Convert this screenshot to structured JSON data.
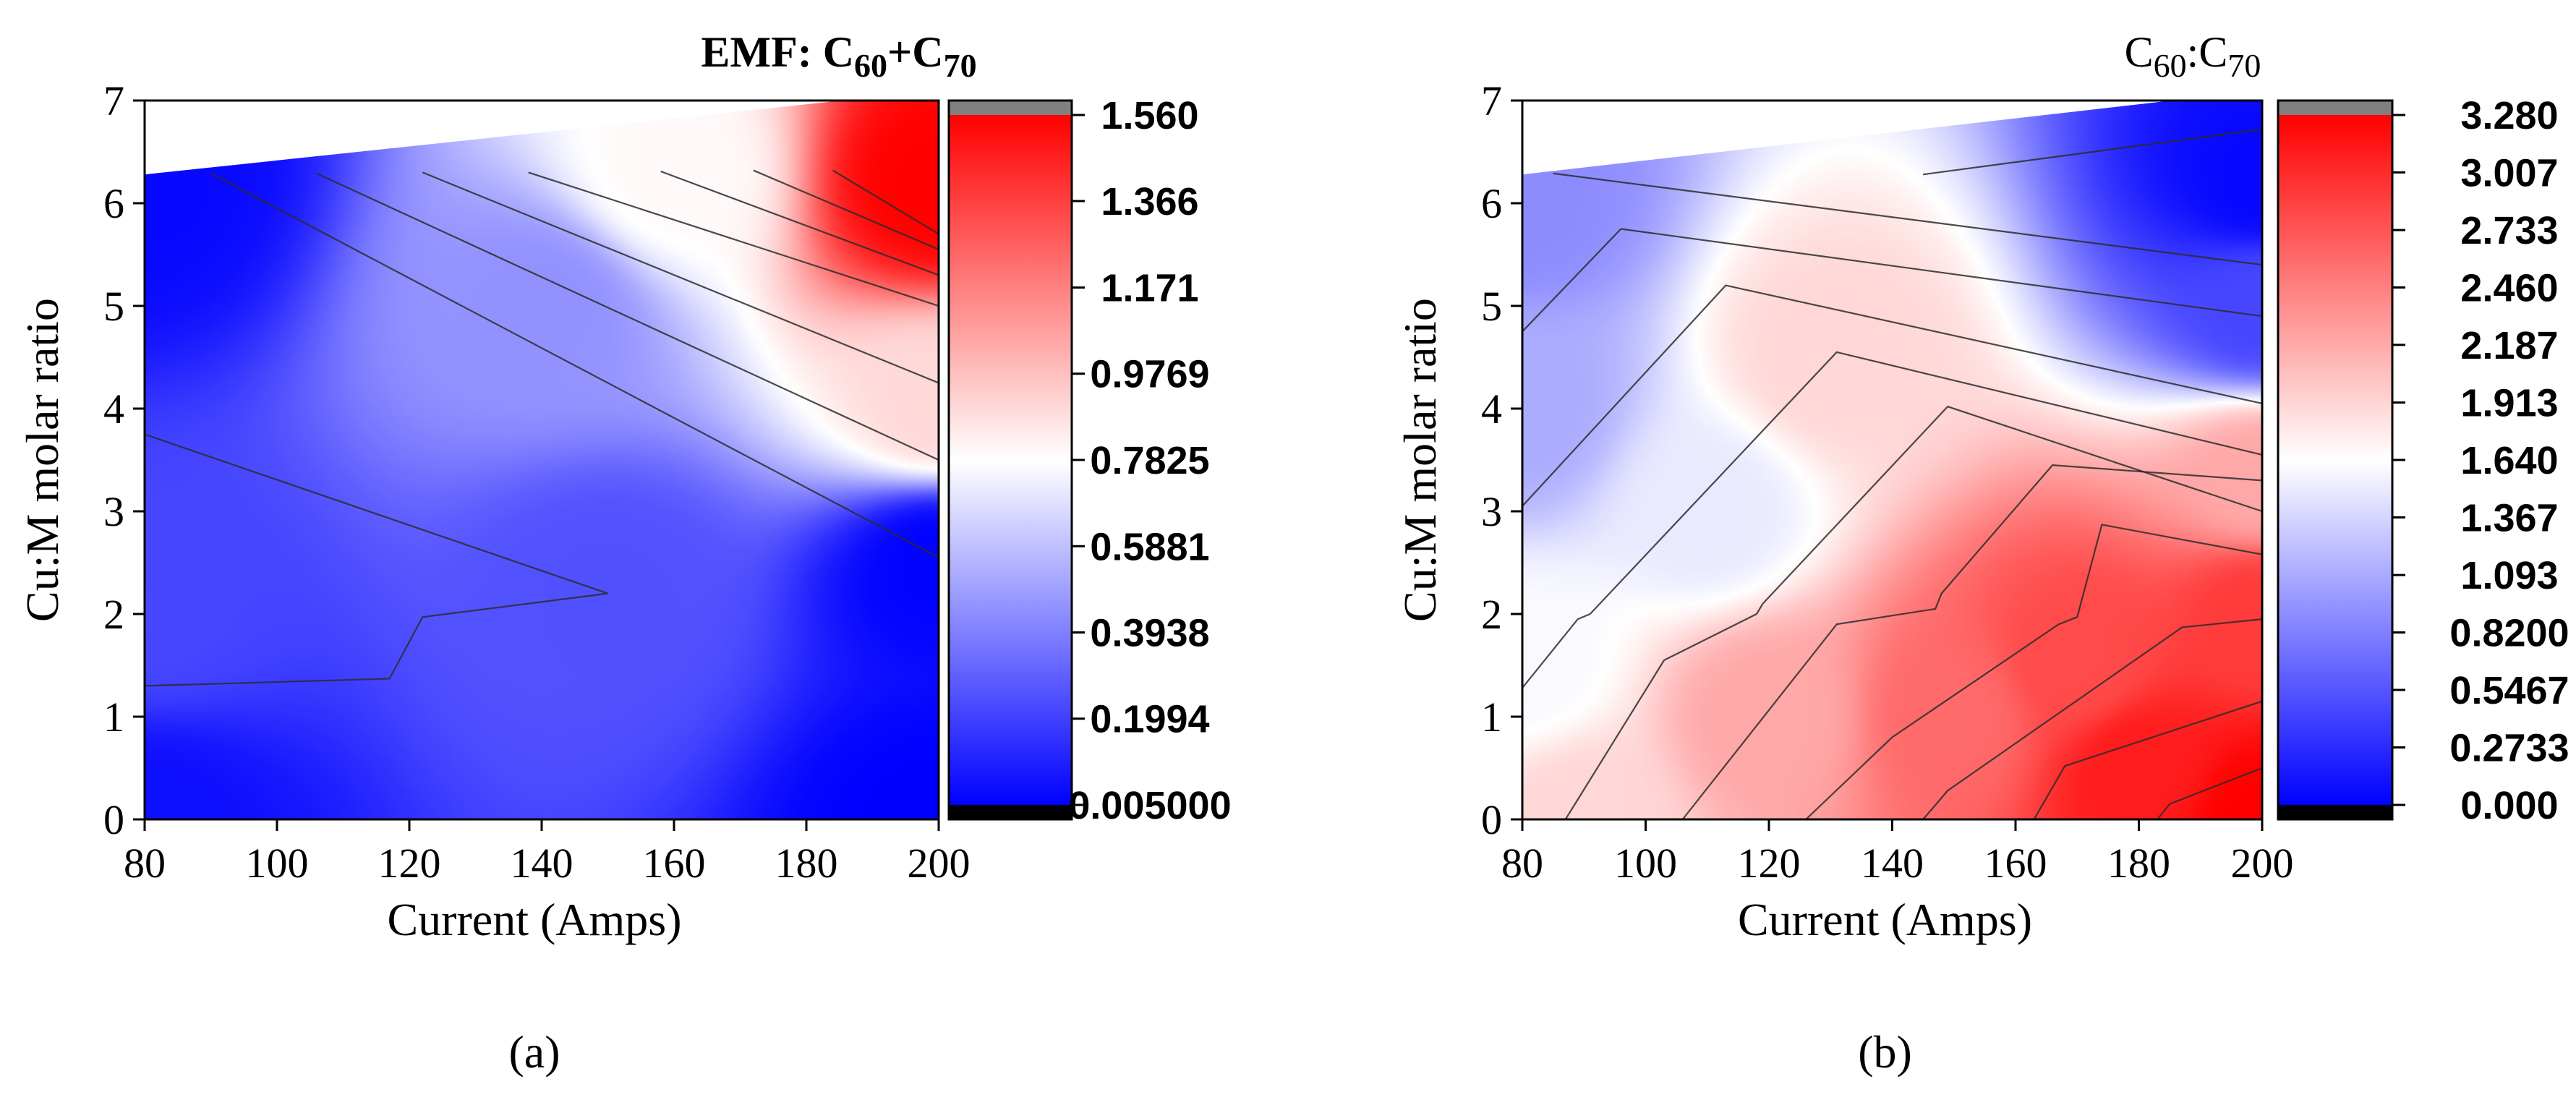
{
  "chart_data": [
    {
      "type": "heatmap",
      "panel_label": "(a)",
      "title": "EMF: C60+C70",
      "title_parts": {
        "prefix": "EMF: C",
        "sub1": "60",
        "plus": "+C",
        "sub2": "70"
      },
      "title_bold": true,
      "xlabel": "Current (Amps)",
      "ylabel": "Cu:M molar ratio",
      "xlim": [
        80,
        200
      ],
      "ylim": [
        0,
        7
      ],
      "x_ticks": [
        80,
        100,
        120,
        140,
        160,
        180,
        200
      ],
      "y_ticks": [
        0,
        1,
        2,
        3,
        4,
        5,
        6,
        7
      ],
      "x_tick_labels": [
        "80",
        "100",
        "120",
        "140",
        "160",
        "180",
        "200"
      ],
      "y_tick_labels": [
        "0",
        "1",
        "2",
        "3",
        "4",
        "5",
        "6",
        "7"
      ],
      "data_boundary_top": [
        [
          80,
          6.28
        ],
        [
          200,
          7.1
        ]
      ],
      "colorbar": {
        "min": 0.005,
        "max": 1.56,
        "colors": [
          "#0000ff",
          "#ffffff",
          "#ff0000"
        ],
        "tick_values": [
          0.005,
          0.1994,
          0.3938,
          0.5881,
          0.7825,
          0.9769,
          1.171,
          1.366,
          1.56
        ],
        "tick_labels": [
          "0.005000",
          "0.1994",
          "0.3938",
          "0.5881",
          "0.7825",
          "0.9769",
          "1.171",
          "1.366",
          "1.560"
        ],
        "over_color": "#808080",
        "under_color": "#000000"
      },
      "contour_lines": [
        [
          [
            80,
            1.3
          ],
          [
            117,
            1.37
          ],
          [
            122,
            1.97
          ],
          [
            150,
            2.2
          ],
          [
            80,
            3.75
          ]
        ],
        [
          [
            90,
            6.29
          ],
          [
            200,
            2.55
          ]
        ],
        [
          [
            106,
            6.29
          ],
          [
            200,
            3.5
          ]
        ],
        [
          [
            122,
            6.3
          ],
          [
            200,
            4.25
          ]
        ],
        [
          [
            138,
            6.3
          ],
          [
            200,
            5.0
          ]
        ],
        [
          [
            158,
            6.31
          ],
          [
            200,
            5.3
          ]
        ],
        [
          [
            172,
            6.32
          ],
          [
            200,
            5.55
          ]
        ],
        [
          [
            184,
            6.32
          ],
          [
            200,
            5.7
          ]
        ]
      ],
      "field_samples": [
        [
          80,
          0.0,
          0.05
        ],
        [
          200,
          0.0,
          0.005
        ],
        [
          80,
          2.0,
          0.22
        ],
        [
          150,
          2.2,
          0.25
        ],
        [
          200,
          2.5,
          0.01
        ],
        [
          80,
          6.2,
          0.03
        ],
        [
          140,
          5.0,
          0.45
        ],
        [
          160,
          6.3,
          0.8
        ],
        [
          200,
          6.2,
          1.56
        ],
        [
          200,
          4.0,
          0.9
        ]
      ]
    },
    {
      "type": "heatmap",
      "panel_label": "(b)",
      "title": "C60:C70",
      "title_parts": {
        "prefix": "C",
        "sub1": "60",
        "plus": ":C",
        "sub2": "70"
      },
      "title_bold": false,
      "xlabel": "Current (Amps)",
      "ylabel": "Cu:M molar ratio",
      "xlim": [
        80,
        200
      ],
      "ylim": [
        0,
        7
      ],
      "x_ticks": [
        80,
        100,
        120,
        140,
        160,
        180,
        200
      ],
      "y_ticks": [
        0,
        1,
        2,
        3,
        4,
        5,
        6,
        7
      ],
      "x_tick_labels": [
        "80",
        "100",
        "120",
        "140",
        "160",
        "180",
        "200"
      ],
      "y_tick_labels": [
        "0",
        "1",
        "2",
        "3",
        "4",
        "5",
        "6",
        "7"
      ],
      "data_boundary_top": [
        [
          80,
          6.28
        ],
        [
          200,
          7.1
        ]
      ],
      "colorbar": {
        "min": 0.0,
        "max": 3.28,
        "colors": [
          "#0000ff",
          "#ffffff",
          "#ff0000"
        ],
        "tick_values": [
          0.0,
          0.2733,
          0.5467,
          0.82,
          1.093,
          1.367,
          1.64,
          1.913,
          2.187,
          2.46,
          2.733,
          3.007,
          3.28
        ],
        "tick_labels": [
          "0.000",
          "0.2733",
          "0.5467",
          "0.8200",
          "1.093",
          "1.367",
          "1.640",
          "1.913",
          "2.187",
          "2.460",
          "2.733",
          "3.007",
          "3.280"
        ],
        "over_color": "#808080",
        "under_color": "#000000"
      },
      "contour_lines": [
        [
          [
            85,
            6.29
          ],
          [
            200,
            5.4
          ]
        ],
        [
          [
            145,
            6.28
          ],
          [
            200,
            6.72
          ]
        ],
        [
          [
            80,
            4.75
          ],
          [
            96,
            5.75
          ],
          [
            200,
            4.9
          ]
        ],
        [
          [
            80,
            3.05
          ],
          [
            113,
            5.2
          ],
          [
            200,
            4.05
          ]
        ],
        [
          [
            80,
            1.28
          ],
          [
            89,
            1.95
          ],
          [
            91,
            2.0
          ],
          [
            131,
            4.55
          ],
          [
            200,
            3.55
          ]
        ],
        [
          [
            87,
            0.0
          ],
          [
            103,
            1.55
          ],
          [
            118,
            2.0
          ],
          [
            119,
            2.1
          ],
          [
            149,
            4.02
          ],
          [
            200,
            3.0
          ]
        ],
        [
          [
            106,
            0.0
          ],
          [
            131,
            1.9
          ],
          [
            147,
            2.05
          ],
          [
            148,
            2.2
          ],
          [
            166,
            3.45
          ],
          [
            200,
            3.3
          ]
        ],
        [
          [
            126,
            0.0
          ],
          [
            140,
            0.8
          ],
          [
            167,
            1.9
          ],
          [
            170,
            1.97
          ],
          [
            174,
            2.87
          ],
          [
            200,
            2.58
          ]
        ],
        [
          [
            145,
            0.0
          ],
          [
            149,
            0.28
          ],
          [
            187,
            1.87
          ],
          [
            200,
            1.95
          ]
        ],
        [
          [
            163,
            0.0
          ],
          [
            168,
            0.52
          ],
          [
            200,
            1.15
          ]
        ],
        [
          [
            183,
            0.0
          ],
          [
            185,
            0.15
          ],
          [
            200,
            0.5
          ]
        ]
      ],
      "field_samples": [
        [
          80,
          6.0,
          0.9
        ],
        [
          200,
          6.2,
          0.05
        ],
        [
          200,
          5.0,
          0.45
        ],
        [
          80,
          4.0,
          1.1
        ],
        [
          130,
          4.5,
          1.9
        ],
        [
          200,
          3.3,
          2.2
        ],
        [
          80,
          1.5,
          1.6
        ],
        [
          90,
          0.0,
          1.9
        ],
        [
          120,
          1.0,
          2.2
        ],
        [
          150,
          1.0,
          2.6
        ],
        [
          200,
          2.0,
          2.9
        ],
        [
          180,
          0.5,
          3.1
        ],
        [
          200,
          0.0,
          3.28
        ],
        [
          170,
          1.5,
          2.8
        ],
        [
          110,
          3.0,
          1.5
        ]
      ]
    }
  ]
}
